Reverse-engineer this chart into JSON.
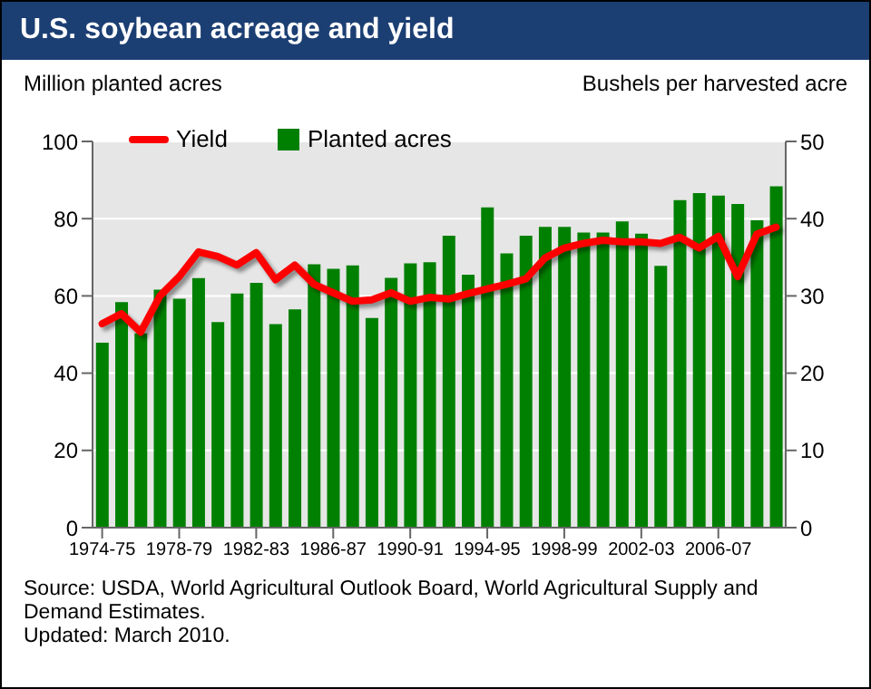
{
  "chart_data": {
    "type": "bar",
    "title": "U.S. soybean acreage and yield",
    "ylabel": "Million planted acres",
    "y2label": "Bushels per harvested acre",
    "categories": [
      "1974-75",
      null,
      null,
      null,
      "1978-79",
      null,
      null,
      null,
      "1982-83",
      null,
      null,
      null,
      "1986-87",
      null,
      null,
      null,
      "1990-91",
      null,
      null,
      null,
      "1994-95",
      null,
      null,
      null,
      "1998-99",
      null,
      null,
      null,
      "2002-03",
      null,
      null,
      null,
      "2006-07",
      null,
      null,
      null
    ],
    "series": [
      {
        "name": "Yield",
        "type": "line",
        "axis": "y2",
        "color": "#ff0000",
        "values": [
          26.4,
          27.7,
          25.3,
          30.0,
          32.5,
          35.7,
          35.1,
          34.0,
          35.6,
          32.1,
          34.0,
          31.5,
          30.4,
          29.3,
          29.5,
          30.4,
          29.3,
          29.8,
          29.6,
          30.3,
          30.9,
          31.5,
          32.2,
          34.9,
          36.2,
          36.8,
          37.2,
          37.0,
          37.0,
          36.8,
          37.6,
          36.2,
          37.7,
          32.5,
          38.0,
          38.9
        ]
      },
      {
        "name": "Planted acres",
        "color": "#008000",
        "values": [
          47.9,
          58.4,
          50.3,
          61.6,
          59.3,
          64.6,
          53.2,
          60.6,
          63.4,
          52.7,
          56.5,
          68.2,
          67.0,
          67.9,
          54.3,
          64.7,
          68.4,
          68.7,
          75.6,
          65.5,
          82.9,
          71.0,
          75.6,
          77.9,
          77.9,
          76.4,
          76.4,
          79.3,
          76.1,
          67.8,
          84.8,
          86.6,
          86.0,
          83.8,
          79.6,
          88.4
        ]
      }
    ],
    "ylim": [
      0,
      100
    ],
    "yticks": [
      0,
      20,
      40,
      60,
      80,
      100
    ],
    "y2lim": [
      0,
      50
    ],
    "y2ticks": [
      0,
      10,
      20,
      30,
      40,
      50
    ],
    "grid": "y",
    "legend": "top left",
    "marker": "none",
    "annotations": [
      "Source: USDA, World Agricultural Outlook Board, World Agricultural Supply and Demand Estimates.",
      "Updated: March 2010."
    ]
  }
}
